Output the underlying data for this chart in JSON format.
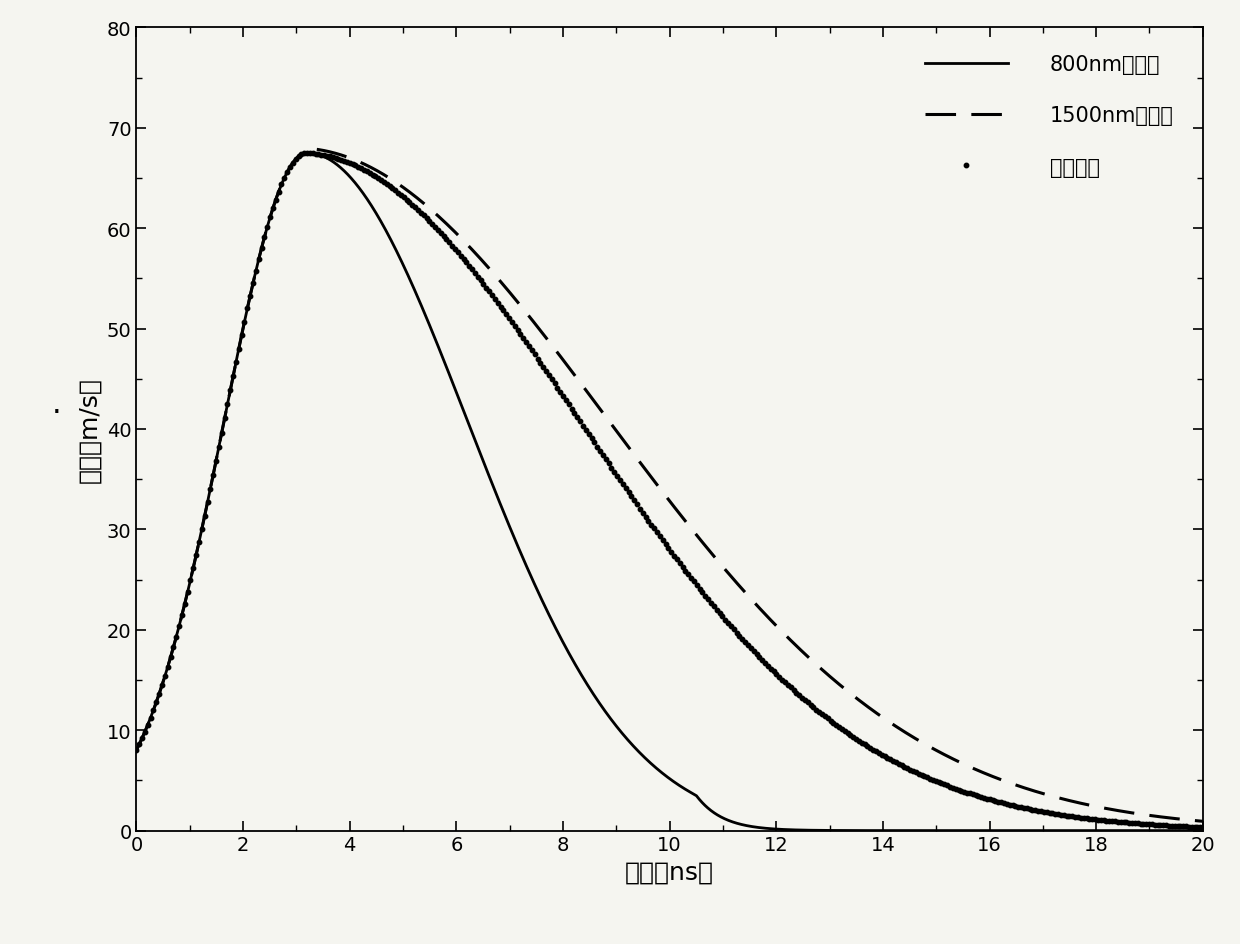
{
  "xlim": [
    0,
    20
  ],
  "ylim": [
    0,
    80
  ],
  "xticks": [
    0,
    2,
    4,
    6,
    8,
    10,
    12,
    14,
    16,
    18,
    20
  ],
  "yticks": [
    0,
    10,
    20,
    30,
    40,
    50,
    60,
    70,
    80
  ],
  "xlabel": "时间（ns）",
  "ylabel": "速度（m/s）",
  "legend_labels": [
    "800nm长轨道",
    "1500nm长轨道",
    "拟合曲线"
  ],
  "line_color": "#000000",
  "background_color": "#f5f5f0",
  "title_dot": "·"
}
